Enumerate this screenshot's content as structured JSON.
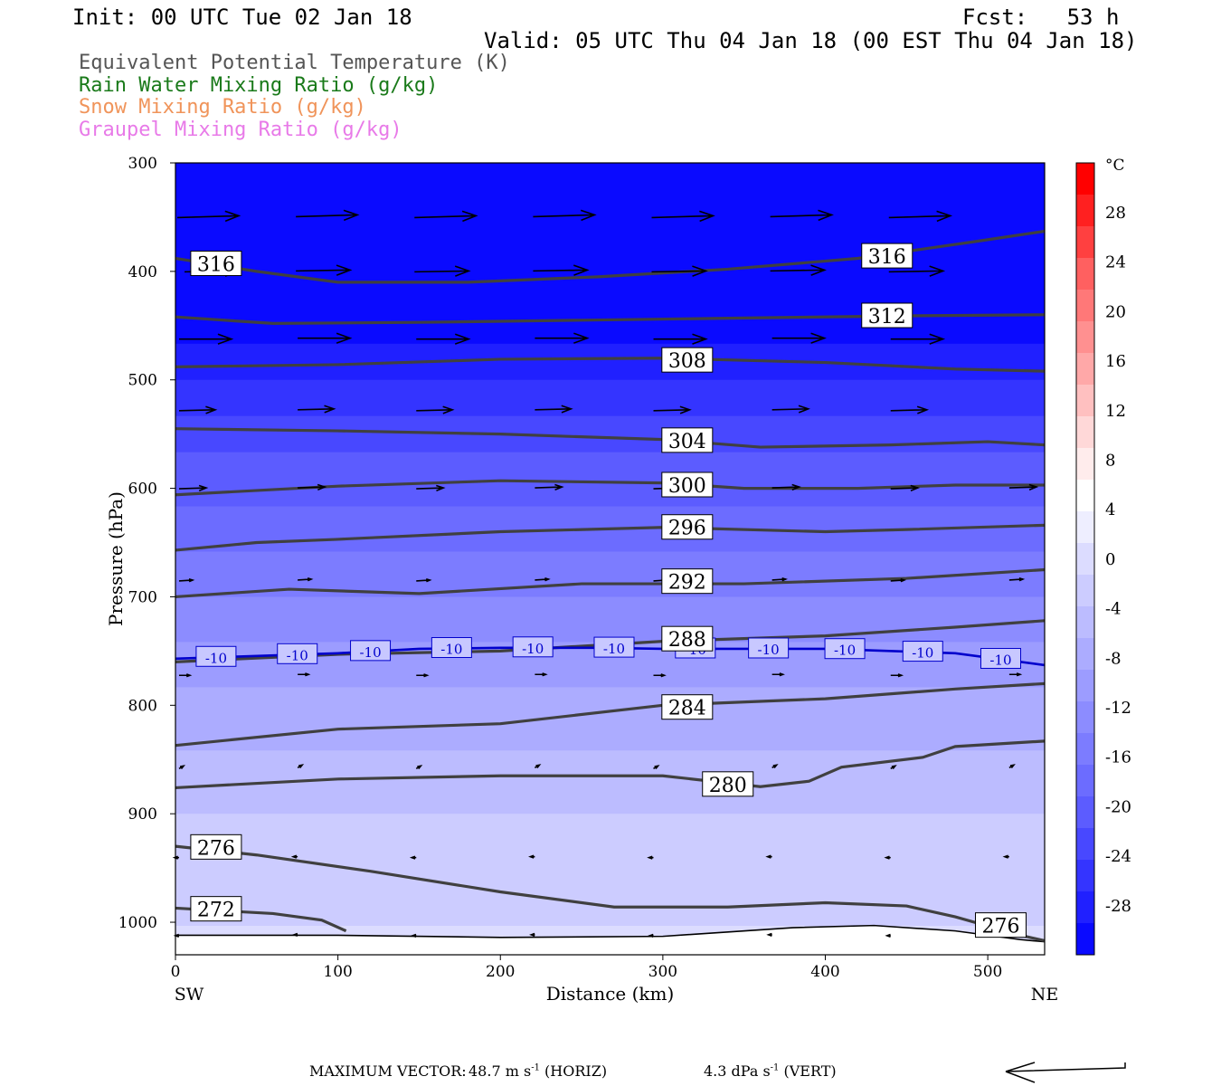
{
  "header": {
    "init": "Init: 00 UTC Tue 02 Jan 18",
    "fcst": "Fcst:   53 h",
    "valid": "Valid: 05 UTC Thu 04 Jan 18 (00 EST Thu 04 Jan 18)",
    "legend": [
      {
        "text": "Equivalent Potential Temperature (K)",
        "color": "#555555"
      },
      {
        "text": "Rain Water Mixing Ratio (g/kg)",
        "color": "#1a7a1a"
      },
      {
        "text": "Snow Mixing Ratio (g/kg)",
        "color": "#f0945a"
      },
      {
        "text": "Graupel Mixing Ratio (g/kg)",
        "color": "#e87ae8"
      }
    ]
  },
  "chart_data": {
    "type": "contour",
    "xlabel": "Distance (km)",
    "ylabel": "Pressure (hPa)",
    "xlim": [
      0,
      535
    ],
    "ylim": [
      1030,
      300
    ],
    "x_ticks": [
      0,
      100,
      200,
      300,
      400,
      500
    ],
    "y_ticks": [
      300,
      400,
      500,
      600,
      700,
      800,
      900,
      1000
    ],
    "x_end_labels": {
      "left": "SW",
      "right": "NE"
    },
    "colorbar": {
      "unit": "°C",
      "tick_labels": [
        "28",
        "24",
        "20",
        "16",
        "12",
        "8",
        "4",
        "0",
        "-4",
        "-8",
        "-12",
        "-16",
        "-20",
        "-24",
        "-28"
      ],
      "colors": [
        "#ff0000",
        "#ff2020",
        "#ff4040",
        "#ff6060",
        "#ff7878",
        "#ff9090",
        "#ffa8a8",
        "#ffc0c0",
        "#ffd8d8",
        "#ffecec",
        "#ffffff",
        "#eeeeff",
        "#dcdcff",
        "#ccccff",
        "#bcbcff",
        "#acacff",
        "#9c9cff",
        "#8c8cff",
        "#7c7cff",
        "#6c6cff",
        "#5c5cff",
        "#4848ff",
        "#3434ff",
        "#2020ff",
        "#0a0aff"
      ]
    },
    "temperature_field": {
      "levels_hpa": [
        300,
        400,
        450,
        500,
        550,
        600,
        650,
        700,
        750,
        800,
        850,
        900,
        950,
        1030
      ],
      "celsius": [
        -45,
        -35,
        -31,
        -27,
        -23,
        -20,
        -17,
        -14,
        -11,
        -8,
        -6,
        -4,
        -2,
        -1
      ]
    },
    "theta_e_contours": [
      {
        "label": "316",
        "x": [
          0,
          50,
          100,
          180,
          260,
          340,
          420,
          490,
          535
        ],
        "p": [
          388,
          400,
          410,
          410,
          405,
          398,
          388,
          373,
          363
        ],
        "labels_at": [
          [
            25,
            393
          ],
          [
            438,
            386
          ]
        ]
      },
      {
        "label": "312",
        "x": [
          0,
          60,
          150,
          250,
          350,
          450,
          535
        ],
        "p": [
          442,
          448,
          447,
          445,
          443,
          441,
          440
        ],
        "labels_at": [
          [
            438,
            441
          ]
        ]
      },
      {
        "label": "308",
        "x": [
          0,
          100,
          200,
          300,
          400,
          480,
          535
        ],
        "p": [
          488,
          486,
          481,
          480,
          484,
          490,
          492
        ],
        "labels_at": [
          [
            315,
            482
          ]
        ]
      },
      {
        "label": "304",
        "x": [
          0,
          100,
          200,
          300,
          360,
          440,
          500,
          535
        ],
        "p": [
          545,
          547,
          550,
          555,
          562,
          560,
          557,
          560
        ],
        "labels_at": [
          [
            315,
            556
          ]
        ]
      },
      {
        "label": "300",
        "x": [
          0,
          100,
          200,
          300,
          350,
          420,
          480,
          535
        ],
        "p": [
          606,
          598,
          593,
          595,
          600,
          600,
          597,
          597
        ],
        "labels_at": [
          [
            315,
            597
          ]
        ]
      },
      {
        "label": "296",
        "x": [
          0,
          50,
          100,
          200,
          300,
          400,
          450,
          535
        ],
        "p": [
          657,
          650,
          647,
          640,
          636,
          640,
          638,
          634
        ],
        "labels_at": [
          [
            315,
            636
          ]
        ]
      },
      {
        "label": "292",
        "x": [
          0,
          70,
          150,
          250,
          350,
          450,
          535
        ],
        "p": [
          700,
          693,
          697,
          688,
          688,
          683,
          675
        ],
        "labels_at": [
          [
            315,
            686
          ]
        ]
      },
      {
        "label": "288",
        "x": [
          0,
          100,
          200,
          300,
          400,
          480,
          535
        ],
        "p": [
          760,
          753,
          750,
          741,
          736,
          728,
          722
        ],
        "labels_at": [
          [
            315,
            739
          ]
        ]
      },
      {
        "label": "284",
        "x": [
          0,
          100,
          200,
          300,
          400,
          480,
          535
        ],
        "p": [
          837,
          822,
          817,
          800,
          794,
          785,
          780
        ],
        "labels_at": [
          [
            315,
            802
          ]
        ]
      },
      {
        "label": "280",
        "x": [
          0,
          100,
          200,
          300,
          360,
          390,
          410,
          460,
          480,
          535
        ],
        "p": [
          876,
          868,
          865,
          865,
          875,
          870,
          857,
          848,
          838,
          833
        ],
        "labels_at": [
          [
            340,
            873
          ]
        ]
      },
      {
        "label": "276",
        "x": [
          0,
          50,
          120,
          200,
          270,
          340,
          400,
          450,
          480,
          520,
          535
        ],
        "p": [
          930,
          938,
          953,
          972,
          986,
          986,
          982,
          985,
          995,
          1012,
          1017
        ],
        "labels_at": [
          [
            25,
            931
          ],
          [
            508,
            1003
          ]
        ]
      },
      {
        "label": "272",
        "x": [
          0,
          60,
          90,
          105
        ],
        "p": [
          987,
          992,
          998,
          1008
        ],
        "labels_at": [
          [
            25,
            988
          ]
        ]
      }
    ],
    "isotherm": {
      "label": "-10",
      "color": "#0000cc",
      "x": [
        0,
        100,
        150,
        200,
        260,
        300,
        400,
        480,
        535
      ],
      "p": [
        757,
        752,
        748,
        747,
        747,
        748,
        748,
        752,
        763
      ],
      "labels_at": [
        25,
        75,
        120,
        170,
        220,
        270,
        320,
        365,
        412,
        460,
        508
      ]
    },
    "wind_vectors": {
      "x_cols": [
        0,
        73,
        146,
        219,
        292,
        365,
        438,
        511
      ],
      "levels": [
        {
          "p": 350,
          "dx": 68,
          "dy": -2
        },
        {
          "p": 400,
          "dx": 60,
          "dy": -1
        },
        {
          "p": 462,
          "dx": 58,
          "dy": 0
        },
        {
          "p": 528,
          "dx": 40,
          "dy": -1
        },
        {
          "p": 600,
          "dx": 30,
          "dy": -1
        },
        {
          "p": 685,
          "dx": 15,
          "dy": -1
        },
        {
          "p": 772,
          "dx": 12,
          "dy": 0
        },
        {
          "p": 858,
          "dx": 5,
          "dy": -3
        },
        {
          "p": 940,
          "dx": -5,
          "dy": 0
        },
        {
          "p": 1012,
          "dx": -4,
          "dy": 0
        }
      ]
    },
    "terrain": {
      "x": [
        0,
        100,
        200,
        300,
        380,
        430,
        480,
        520,
        535
      ],
      "p": [
        1012,
        1012,
        1014,
        1013,
        1005,
        1003,
        1008,
        1016,
        1018
      ]
    }
  },
  "footer": {
    "max_vector_label": "MAXIMUM VECTOR:",
    "horiz_value": "48.7 m s",
    "horiz_unit": "(HORIZ)",
    "vert_value": "4.3 dPa s",
    "vert_unit": "(VERT)",
    "exponent": "-1"
  }
}
